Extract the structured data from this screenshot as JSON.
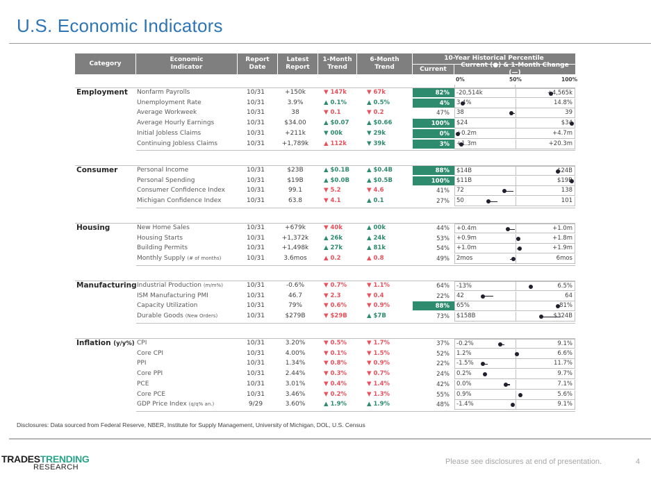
{
  "title": "U.S. Economic Indicators",
  "headers": {
    "category": "Category",
    "indicator": "Economic Indicator",
    "report_date": "Report Date",
    "latest": "Latest Report",
    "m1": "1-Month Trend",
    "m6": "6-Month Trend",
    "hist": "10-Year Historical Percentile",
    "current": "Current",
    "chart": "Current (●) & 1-Month Change (—)",
    "scale": [
      "0%",
      "50%",
      "100%"
    ]
  },
  "colors": {
    "header_bg": "#7f7f7f",
    "highlight": "#2e8b6e",
    "up_good": "#2e8b6e",
    "down_bad": "#e8505b",
    "title": "#2e75b6"
  },
  "sections": [
    {
      "category": "Employment",
      "category_note": "",
      "rows": [
        {
          "indicator": "Nonfarm Payrolls",
          "note": "",
          "date": "10/31",
          "latest": "+150k",
          "m1": "▼ 147k",
          "m1_tone": "bad",
          "m6": "▼ 67k",
          "m6_tone": "bad",
          "current": "82%",
          "pct": 82,
          "prev_pct": 82,
          "highlight": true,
          "min": "-20,514k",
          "max": "+4,565k"
        },
        {
          "indicator": "Unemployment Rate",
          "note": "",
          "date": "10/31",
          "latest": "3.9%",
          "m1": "▲ 0.1%",
          "m1_tone": "good",
          "m6": "▲ 0.5%",
          "m6_tone": "good",
          "current": "4%",
          "pct": 4,
          "prev_pct": 4,
          "highlight": true,
          "min": "3.4%",
          "max": "14.8%"
        },
        {
          "indicator": "Average Workweek",
          "note": "",
          "date": "10/31",
          "latest": "38",
          "m1": "▼ 0.1",
          "m1_tone": "bad",
          "m6": "▼ 0.2",
          "m6_tone": "bad",
          "current": "47%",
          "pct": 47,
          "prev_pct": 50,
          "highlight": false,
          "min": "38",
          "max": "39"
        },
        {
          "indicator": "Average Hourly Earnings",
          "note": "",
          "date": "10/31",
          "latest": "$34.00",
          "m1": "▲ $0.07",
          "m1_tone": "good",
          "m6": "▲ $0.66",
          "m6_tone": "good",
          "current": "100%",
          "pct": 100,
          "prev_pct": 100,
          "highlight": true,
          "min": "$24",
          "max": "$34"
        },
        {
          "indicator": "Initial Jobless Claims",
          "note": "",
          "date": "10/31",
          "latest": "+211k",
          "m1": "▼ 00k",
          "m1_tone": "good",
          "m6": "▼ 29k",
          "m6_tone": "good",
          "current": "0%",
          "pct": 0,
          "prev_pct": 0,
          "highlight": true,
          "min": "+0.2m",
          "max": "+4.7m"
        },
        {
          "indicator": "Continuing Jobless Claims",
          "note": "",
          "date": "10/31",
          "latest": "+1,789k",
          "m1": "▲ 112k",
          "m1_tone": "bad",
          "m6": "▼ 39k",
          "m6_tone": "good",
          "current": "3%",
          "pct": 3,
          "prev_pct": 3,
          "highlight": true,
          "min": "+1.3m",
          "max": "+20.3m"
        }
      ]
    },
    {
      "category": "Consumer",
      "category_note": "",
      "rows": [
        {
          "indicator": "Personal Income",
          "note": "",
          "date": "10/31",
          "latest": "$23B",
          "m1": "▲ $0.1B",
          "m1_tone": "good",
          "m6": "▲ $0.4B",
          "m6_tone": "good",
          "current": "88%",
          "pct": 88,
          "prev_pct": 88,
          "highlight": true,
          "min": "$14B",
          "max": "$24B"
        },
        {
          "indicator": "Personal Spending",
          "note": "",
          "date": "10/31",
          "latest": "$19B",
          "m1": "▲ $0.0B",
          "m1_tone": "good",
          "m6": "▲ $0.5B",
          "m6_tone": "good",
          "current": "100%",
          "pct": 100,
          "prev_pct": 100,
          "highlight": true,
          "min": "$11B",
          "max": "$19B"
        },
        {
          "indicator": "Consumer Confidence Index",
          "note": "",
          "date": "10/31",
          "latest": "99.1",
          "m1": "▼ 5.2",
          "m1_tone": "bad",
          "m6": "▼ 4.6",
          "m6_tone": "bad",
          "current": "41%",
          "pct": 41,
          "prev_pct": 49,
          "highlight": false,
          "min": "72",
          "max": "138"
        },
        {
          "indicator": "Michigan Confidence Index",
          "note": "",
          "date": "10/31",
          "latest": "63.8",
          "m1": "▼ 4.1",
          "m1_tone": "bad",
          "m6": "▲ 0.1",
          "m6_tone": "good",
          "current": "27%",
          "pct": 27,
          "prev_pct": 35,
          "highlight": false,
          "min": "50",
          "max": "101"
        }
      ]
    },
    {
      "category": "Housing",
      "category_note": "",
      "rows": [
        {
          "indicator": "New Home Sales",
          "note": "",
          "date": "10/31",
          "latest": "+679k",
          "m1": "▼ 40k",
          "m1_tone": "bad",
          "m6": "▲ 00k",
          "m6_tone": "good",
          "current": "44%",
          "pct": 44,
          "prev_pct": 50,
          "highlight": false,
          "min": "+0.4m",
          "max": "+1.0m"
        },
        {
          "indicator": "Housing Starts",
          "note": "",
          "date": "10/31",
          "latest": "+1,372k",
          "m1": "▲ 26k",
          "m1_tone": "good",
          "m6": "▲ 24k",
          "m6_tone": "good",
          "current": "53%",
          "pct": 53,
          "prev_pct": 51,
          "highlight": false,
          "min": "+0.9m",
          "max": "+1.8m"
        },
        {
          "indicator": "Building Permits",
          "note": "",
          "date": "10/31",
          "latest": "+1,498k",
          "m1": "▲ 27k",
          "m1_tone": "good",
          "m6": "▲ 81k",
          "m6_tone": "good",
          "current": "54%",
          "pct": 54,
          "prev_pct": 52,
          "highlight": false,
          "min": "+1.0m",
          "max": "+1.9m"
        },
        {
          "indicator": "Monthly Supply",
          "note": "(# of months)",
          "date": "10/31",
          "latest": "3.6mos",
          "m1": "▲ 0.2",
          "m1_tone": "bad",
          "m6": "▲ 0.8",
          "m6_tone": "bad",
          "current": "49%",
          "pct": 49,
          "prev_pct": 46,
          "highlight": false,
          "min": "2mos",
          "max": "6mos"
        }
      ]
    },
    {
      "category": "Manufacturing",
      "category_note": "",
      "rows": [
        {
          "indicator": "Industrial Production",
          "note": "(m/m%)",
          "date": "10/31",
          "latest": "-0.6%",
          "m1": "▼ 0.7%",
          "m1_tone": "bad",
          "m6": "▼ 1.1%",
          "m6_tone": "bad",
          "current": "64%",
          "pct": 64,
          "prev_pct": 64,
          "highlight": false,
          "min": "-13%",
          "max": "6.5%"
        },
        {
          "indicator": "ISM Manufacturing PMI",
          "note": "",
          "date": "10/31",
          "latest": "46.7",
          "m1": "▼ 2.3",
          "m1_tone": "bad",
          "m6": "▼ 0.4",
          "m6_tone": "bad",
          "current": "22%",
          "pct": 22,
          "prev_pct": 31,
          "highlight": false,
          "min": "42",
          "max": "64"
        },
        {
          "indicator": "Capacity Utilization",
          "note": "",
          "date": "10/31",
          "latest": "79%",
          "m1": "▼ 0.6%",
          "m1_tone": "bad",
          "m6": "▼ 0.9%",
          "m6_tone": "bad",
          "current": "88%",
          "pct": 88,
          "prev_pct": 88,
          "highlight": true,
          "min": "65%",
          "max": "81%"
        },
        {
          "indicator": "Durable Goods",
          "note": "(New Orders)",
          "date": "10/31",
          "latest": "$279B",
          "m1": "▼ $29B",
          "m1_tone": "bad",
          "m6": "▲ $7B",
          "m6_tone": "good",
          "current": "73%",
          "pct": 73,
          "prev_pct": 90,
          "highlight": false,
          "min": "$158B",
          "max": "$324B"
        }
      ]
    },
    {
      "category": "Inflation",
      "category_note": "(y/y%)",
      "rows": [
        {
          "indicator": "CPI",
          "note": "",
          "date": "10/31",
          "latest": "3.20%",
          "m1": "▼ 0.5%",
          "m1_tone": "bad",
          "m6": "▼ 1.7%",
          "m6_tone": "bad",
          "current": "37%",
          "pct": 37,
          "prev_pct": 41,
          "highlight": false,
          "min": "-0.2%",
          "max": "9.1%"
        },
        {
          "indicator": "Core CPI",
          "note": "",
          "date": "10/31",
          "latest": "4.00%",
          "m1": "▼ 0.1%",
          "m1_tone": "bad",
          "m6": "▼ 1.5%",
          "m6_tone": "bad",
          "current": "52%",
          "pct": 52,
          "prev_pct": 52,
          "highlight": false,
          "min": "1.2%",
          "max": "6.6%"
        },
        {
          "indicator": "PPI",
          "note": "",
          "date": "10/31",
          "latest": "1.34%",
          "m1": "▼ 0.8%",
          "m1_tone": "bad",
          "m6": "▼ 0.9%",
          "m6_tone": "bad",
          "current": "22%",
          "pct": 22,
          "prev_pct": 26,
          "highlight": false,
          "min": "-1.5%",
          "max": "11.7%"
        },
        {
          "indicator": "Core PPI",
          "note": "",
          "date": "10/31",
          "latest": "2.44%",
          "m1": "▼ 0.3%",
          "m1_tone": "bad",
          "m6": "▼ 0.7%",
          "m6_tone": "bad",
          "current": "24%",
          "pct": 24,
          "prev_pct": 24,
          "highlight": false,
          "min": "0.2%",
          "max": "9.7%"
        },
        {
          "indicator": "PCE",
          "note": "",
          "date": "10/31",
          "latest": "3.01%",
          "m1": "▼ 0.4%",
          "m1_tone": "bad",
          "m6": "▼ 1.4%",
          "m6_tone": "bad",
          "current": "42%",
          "pct": 42,
          "prev_pct": 46,
          "highlight": false,
          "min": "0.0%",
          "max": "7.1%"
        },
        {
          "indicator": "Core PCE",
          "note": "",
          "date": "10/31",
          "latest": "3.46%",
          "m1": "▼ 0.2%",
          "m1_tone": "bad",
          "m6": "▼ 1.3%",
          "m6_tone": "bad",
          "current": "55%",
          "pct": 55,
          "prev_pct": 55,
          "highlight": false,
          "min": "0.9%",
          "max": "5.6%"
        },
        {
          "indicator": "GDP Price Index",
          "note": "(q/q% an.)",
          "date": "9/29",
          "latest": "3.60%",
          "m1": "▲ 1.9%",
          "m1_tone": "good",
          "m6": "▲ 1.9%",
          "m6_tone": "good",
          "current": "48%",
          "pct": 48,
          "prev_pct": 48,
          "highlight": false,
          "min": "-1.4%",
          "max": "9.1%"
        }
      ]
    }
  ],
  "disclosure": "Disclosures: Data sourced from Federal Reserve, NBER, Institute for Supply Management, University of Michigan, DOL, U.S. Census",
  "logo": {
    "part1": "TRADES",
    "part2": "TRENDING",
    "part3": "RESEARCH"
  },
  "footnote": "Please see disclosures at end of presentation.",
  "page_number": "4"
}
